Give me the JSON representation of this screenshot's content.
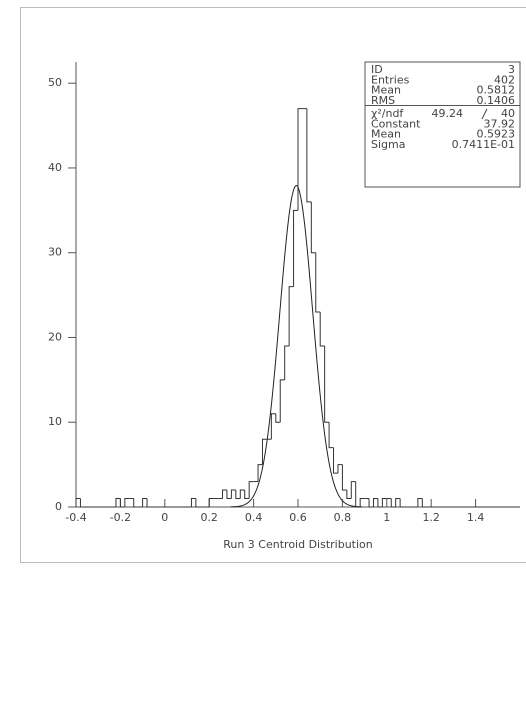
{
  "chart_data": {
    "type": "histogram",
    "xlabel": "Run 3 Centroid Distribution",
    "bins": [
      -0.4,
      -0.38,
      -0.36,
      -0.34,
      -0.32,
      -0.3,
      -0.28,
      -0.26,
      -0.24,
      -0.22,
      -0.2,
      -0.18,
      -0.16,
      -0.14,
      -0.12,
      -0.1,
      -0.08,
      -0.06,
      -0.04,
      -0.02,
      0,
      0.02,
      0.04,
      0.06,
      0.08,
      0.1,
      0.12,
      0.14,
      0.16,
      0.18,
      0.2,
      0.22,
      0.24,
      0.26,
      0.28,
      0.3,
      0.32,
      0.34,
      0.36,
      0.38,
      0.4,
      0.42,
      0.44,
      0.46,
      0.48,
      0.5,
      0.52,
      0.54,
      0.56,
      0.58,
      0.6,
      0.62,
      0.64,
      0.66,
      0.68,
      0.7,
      0.72,
      0.74,
      0.76,
      0.78,
      0.8,
      0.82,
      0.84,
      0.86,
      0.88,
      0.9,
      0.92,
      0.94,
      0.96,
      0.98,
      1,
      1.02,
      1.04,
      1.06,
      1.08,
      1.1,
      1.12,
      1.14,
      1.16,
      1.18,
      1.2,
      1.22,
      1.24,
      1.26,
      1.28,
      1.3,
      1.32,
      1.34,
      1.36,
      1.38,
      1.4,
      1.42,
      1.44,
      1.46,
      1.48,
      1.5,
      1.52,
      1.54,
      1.56,
      1.58,
      1.6
    ],
    "values": [
      1,
      0,
      0,
      0,
      0,
      0,
      0,
      0,
      0,
      1,
      0,
      1,
      1,
      0,
      0,
      1,
      0,
      0,
      0,
      0,
      0,
      0,
      0,
      0,
      0,
      0,
      1,
      0,
      0,
      0,
      1,
      1,
      1,
      2,
      1,
      2,
      1,
      2,
      1,
      3,
      3,
      5,
      8,
      8,
      11,
      10,
      15,
      19,
      26,
      35,
      47,
      47,
      36,
      30,
      23,
      19,
      10,
      7,
      4,
      5,
      2,
      1,
      3,
      0,
      1,
      1,
      0,
      1,
      0,
      1,
      1,
      0,
      1,
      0,
      0,
      0,
      0,
      1,
      0,
      0,
      0,
      0,
      0,
      0,
      0,
      0,
      0,
      0,
      0,
      0,
      0,
      0,
      0,
      0,
      0,
      0,
      0,
      0,
      0,
      0
    ],
    "color": "#333333",
    "xlim": [
      -0.4,
      1.6
    ],
    "xticks": [
      -0.4,
      -0.2,
      0,
      0.2,
      0.4,
      0.6,
      0.8,
      1,
      1.2,
      1.4
    ],
    "ylim": [
      0,
      52.5
    ],
    "yticks": [
      0,
      10,
      20,
      30,
      40,
      50
    ],
    "stats": [
      {
        "label": "ID",
        "value": 3
      },
      {
        "label": "Entries",
        "value": 402
      },
      {
        "label": "Mean",
        "value": 0.5812
      },
      {
        "label": "RMS",
        "value": 0.1406
      }
    ],
    "fit_quality": {
      "label": "χ²/ndf",
      "chi2": 49.24,
      "ndf": 40
    },
    "fit": [
      {
        "label": "Constant",
        "value": 37.92
      },
      {
        "label": "Mean",
        "value": 0.5923
      },
      {
        "label": "Sigma",
        "value": {
          "value": 0.07411,
          "label": "0.7411E-01"
        }
      }
    ],
    "fit_color": "#222222"
  }
}
